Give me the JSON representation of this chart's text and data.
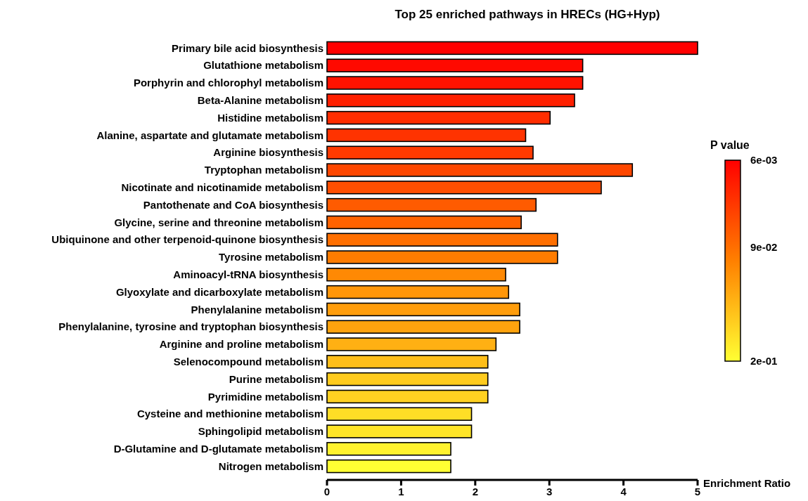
{
  "chart_data": {
    "type": "bar",
    "orientation": "horizontal",
    "title": "Top 25 enriched pathways in HRECs (HG+Hyp)",
    "xlabel": "Enrichment Ratio",
    "clabel": "P value",
    "categories": [
      "Primary bile acid biosynthesis",
      "Glutathione metabolism",
      "Porphyrin and chlorophyl metabolism",
      "Beta-Alanine metabolism",
      "Histidine metabolism",
      "Alanine, aspartate and glutamate metabolism",
      "Arginine biosynthesis",
      "Tryptophan metabolism",
      "Nicotinate and nicotinamide metabolism",
      "Pantothenate and CoA biosynthesis",
      "Glycine, serine and threonine metabolism",
      "Ubiquinone and other terpenoid-quinone biosynthesis",
      "Tyrosine metabolism",
      "Aminoacyl-tRNA biosynthesis",
      "Glyoxylate and dicarboxylate metabolism",
      "Phenylalanine metabolism",
      "Phenylalanine, tyrosine and tryptophan biosynthesis",
      "Arginine and proline metabolism",
      "Selenocompound metabolism",
      "Purine metabolism",
      "Pyrimidine metabolism",
      "Cysteine and methionine metabolism",
      "Sphingolipid metabolism",
      "D-Glutamine and D-glutamate metabolism",
      "Nitrogen metabolism"
    ],
    "values": [
      5.0,
      3.45,
      3.45,
      3.34,
      3.01,
      2.68,
      2.78,
      4.12,
      3.7,
      2.82,
      2.62,
      3.11,
      3.11,
      2.41,
      2.45,
      2.6,
      2.6,
      2.28,
      2.17,
      2.17,
      2.17,
      1.95,
      1.95,
      1.67,
      1.67
    ],
    "cvalues": [
      0.006,
      0.013,
      0.02,
      0.03,
      0.04,
      0.045,
      0.05,
      0.06,
      0.065,
      0.075,
      0.08,
      0.09,
      0.1,
      0.11,
      0.12,
      0.125,
      0.13,
      0.14,
      0.15,
      0.16,
      0.165,
      0.175,
      0.18,
      0.19,
      0.2
    ],
    "xlim": [
      0,
      5
    ],
    "xticks": [
      0,
      1,
      2,
      3,
      4,
      5
    ],
    "clim": [
      0.006,
      0.2
    ],
    "cticks": [
      {
        "value": 0.006,
        "label": "6e-03"
      },
      {
        "value": 0.09,
        "label": "9e-02"
      },
      {
        "value": 0.2,
        "label": "2e-01"
      }
    ],
    "grid": false
  }
}
